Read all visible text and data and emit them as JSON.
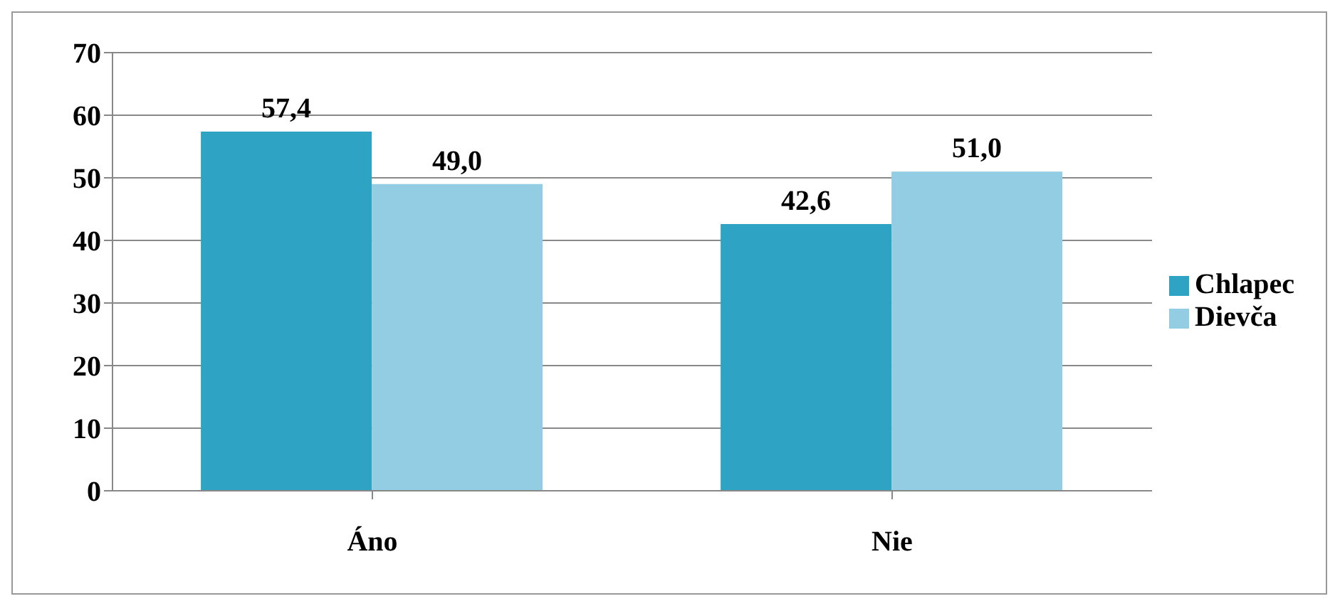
{
  "chart_data": {
    "type": "bar",
    "categories": [
      "Áno",
      "Nie"
    ],
    "series": [
      {
        "name": "Chlapec",
        "color": "#2fa3c3",
        "values": [
          57.4,
          42.6
        ],
        "value_labels": [
          "57,4",
          "42,6"
        ]
      },
      {
        "name": "Dievča",
        "color": "#93cde3",
        "values": [
          49.0,
          51.0
        ],
        "value_labels": [
          "49,0",
          "51,0"
        ]
      }
    ],
    "ylim": [
      0,
      70
    ],
    "yticks": [
      0,
      10,
      20,
      30,
      40,
      50,
      60,
      70
    ],
    "grid": "y",
    "legend": "right"
  }
}
